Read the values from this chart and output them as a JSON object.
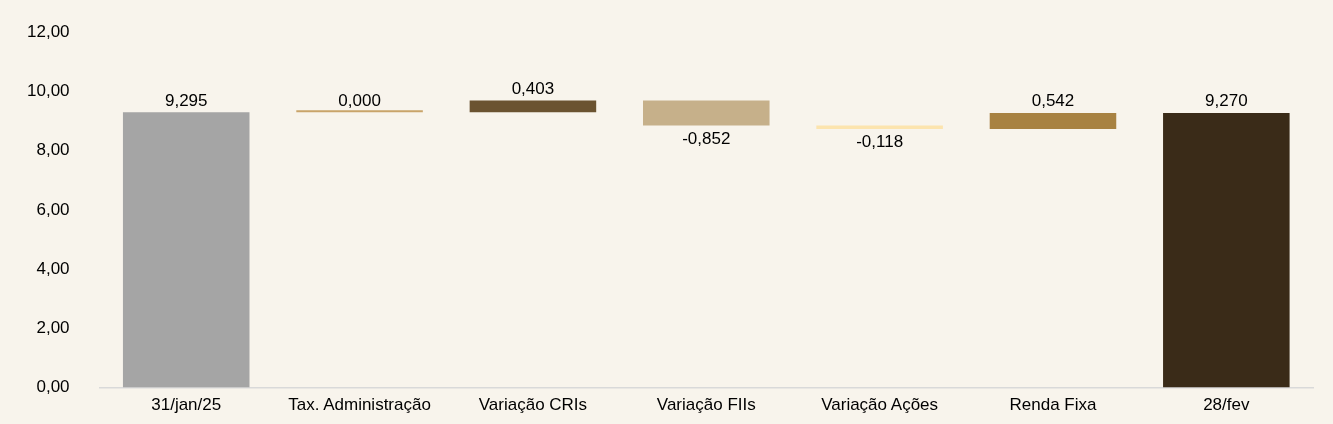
{
  "chart_data": {
    "type": "bar",
    "categories": [
      "31/jan/25",
      "Tax. Administração",
      "Variação CRIs",
      "Variação FIIs",
      "Variação Ações",
      "Renda Fixa",
      "28/fev"
    ],
    "values": [
      9.295,
      0.0,
      0.403,
      -0.852,
      -0.118,
      0.542,
      9.27
    ],
    "base": [
      0,
      9.295,
      9.295,
      9.698,
      8.846,
      8.728,
      0
    ],
    "colors": [
      "#a5a5a5",
      "#c9a46a",
      "#6b5331",
      "#c6b08a",
      "#fce4ae",
      "#a88242",
      "#3a2b18"
    ],
    "value_labels": [
      "9,295",
      "0,000",
      "0,403",
      "-0,852",
      "-0,118",
      "0,542",
      "9,270"
    ],
    "ylim": [
      0,
      12
    ],
    "yticks": [
      {
        "value": 0,
        "label": "0,00"
      },
      {
        "value": 2,
        "label": "2,00"
      },
      {
        "value": 4,
        "label": "4,00"
      },
      {
        "value": 6,
        "label": "6,00"
      },
      {
        "value": 8,
        "label": "8,00"
      },
      {
        "value": 10,
        "label": "10,00"
      },
      {
        "value": 12,
        "label": "12,00"
      }
    ],
    "grid": false,
    "legend": false
  }
}
